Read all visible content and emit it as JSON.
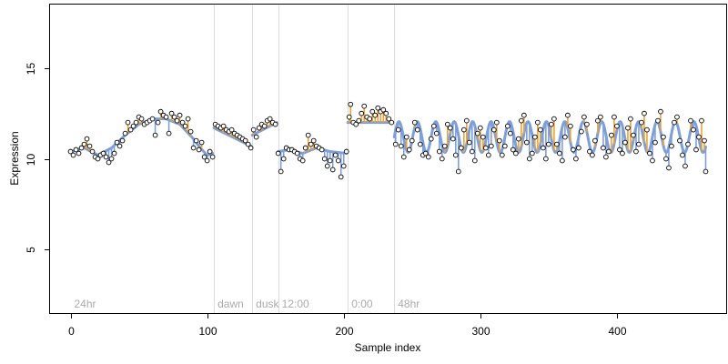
{
  "chart_data": {
    "type": "scatter",
    "title": "",
    "xlabel": "Sample index",
    "ylabel": "Expression",
    "xlim": [
      -15,
      480
    ],
    "ylim": [
      1.5,
      18.5
    ],
    "x_ticks": [
      0,
      100,
      200,
      300,
      400
    ],
    "y_ticks": [
      5,
      10,
      15
    ],
    "grid": false,
    "legend": "none",
    "colors": {
      "fit_line": "#7f9fd8",
      "residual_above": "#e8a33a",
      "residual_below": "#7f9fd8",
      "point_fill": "#ffffff",
      "point_stroke": "#000000",
      "divider": "#dddddd",
      "region_label": "#aaaaaa"
    },
    "regions": [
      {
        "label": "24hr",
        "start": 0
      },
      {
        "label": "dawn",
        "start": 105
      },
      {
        "label": "dusk",
        "start": 133
      },
      {
        "label": "12:00",
        "start": 152
      },
      {
        "label": "0:00",
        "start": 203
      },
      {
        "label": "48hr",
        "start": 237
      }
    ],
    "dividers": [
      105,
      133,
      152,
      203,
      237
    ],
    "segments": [
      {
        "name": "24hr",
        "x": [
          0,
          104
        ],
        "fit": [
          [
            0,
            10.4
          ],
          [
            10,
            10.6
          ],
          [
            20,
            10.2
          ],
          [
            30,
            10.6
          ],
          [
            40,
            11.3
          ],
          [
            50,
            11.9
          ],
          [
            60,
            12.2
          ],
          [
            70,
            12.2
          ],
          [
            80,
            11.9
          ],
          [
            90,
            11.1
          ],
          [
            95,
            10.6
          ],
          [
            100,
            10.2
          ],
          [
            104,
            10.3
          ]
        ]
      },
      {
        "name": "dawn",
        "x": [
          105,
          132
        ],
        "fit": [
          [
            105,
            11.7
          ],
          [
            132,
            10.7
          ]
        ]
      },
      {
        "name": "dusk",
        "x": [
          133,
          151
        ],
        "fit": [
          [
            133,
            11.3
          ],
          [
            151,
            12.0
          ]
        ]
      },
      {
        "name": "12:00",
        "x": [
          152,
          202
        ],
        "fit": [
          [
            152,
            10.4
          ],
          [
            160,
            10.5
          ],
          [
            170,
            10.3
          ],
          [
            180,
            10.6
          ],
          [
            190,
            10.4
          ],
          [
            202,
            10.3
          ]
        ]
      },
      {
        "name": "0:00",
        "x": [
          203,
          236
        ],
        "fit": [
          [
            203,
            12.0
          ],
          [
            236,
            12.0
          ]
        ]
      },
      {
        "name": "48hr",
        "x": [
          237,
          465
        ],
        "sine": {
          "mean": 11.2,
          "amp": 0.85,
          "period": 13.5,
          "phase": 237
        }
      }
    ],
    "points": [
      [
        0,
        10.4
      ],
      [
        2,
        10.2
      ],
      [
        4,
        10.5
      ],
      [
        6,
        10.3
      ],
      [
        8,
        10.6
      ],
      [
        10,
        10.8
      ],
      [
        12,
        11.1
      ],
      [
        14,
        10.7
      ],
      [
        16,
        10.4
      ],
      [
        18,
        10.1
      ],
      [
        20,
        10.0
      ],
      [
        22,
        10.2
      ],
      [
        24,
        10.3
      ],
      [
        26,
        10.1
      ],
      [
        28,
        9.8
      ],
      [
        30,
        10.0
      ],
      [
        32,
        10.3
      ],
      [
        34,
        10.9
      ],
      [
        36,
        10.7
      ],
      [
        38,
        11.0
      ],
      [
        40,
        11.4
      ],
      [
        42,
        12.0
      ],
      [
        44,
        11.6
      ],
      [
        46,
        11.8
      ],
      [
        48,
        12.0
      ],
      [
        50,
        12.3
      ],
      [
        52,
        12.2
      ],
      [
        54,
        11.9
      ],
      [
        56,
        12.0
      ],
      [
        58,
        12.1
      ],
      [
        60,
        12.2
      ],
      [
        62,
        11.3
      ],
      [
        64,
        12.0
      ],
      [
        66,
        12.6
      ],
      [
        68,
        12.4
      ],
      [
        70,
        12.3
      ],
      [
        72,
        11.4
      ],
      [
        74,
        12.5
      ],
      [
        76,
        12.3
      ],
      [
        78,
        12.1
      ],
      [
        80,
        12.4
      ],
      [
        82,
        12.0
      ],
      [
        84,
        11.8
      ],
      [
        86,
        12.2
      ],
      [
        88,
        11.5
      ],
      [
        90,
        10.6
      ],
      [
        92,
        11.0
      ],
      [
        94,
        10.5
      ],
      [
        96,
        10.9
      ],
      [
        98,
        10.1
      ],
      [
        100,
        9.9
      ],
      [
        102,
        10.4
      ],
      [
        104,
        10.1
      ],
      [
        106,
        11.9
      ],
      [
        108,
        11.8
      ],
      [
        110,
        11.7
      ],
      [
        112,
        11.8
      ],
      [
        114,
        11.6
      ],
      [
        116,
        11.5
      ],
      [
        118,
        11.6
      ],
      [
        120,
        11.4
      ],
      [
        122,
        11.3
      ],
      [
        124,
        11.2
      ],
      [
        126,
        11.1
      ],
      [
        128,
        11.0
      ],
      [
        130,
        10.8
      ],
      [
        132,
        10.6
      ],
      [
        134,
        11.6
      ],
      [
        136,
        11.2
      ],
      [
        138,
        11.7
      ],
      [
        140,
        11.9
      ],
      [
        142,
        11.8
      ],
      [
        144,
        12.1
      ],
      [
        146,
        12.2
      ],
      [
        148,
        12.0
      ],
      [
        150,
        11.9
      ],
      [
        152,
        10.3
      ],
      [
        154,
        9.3
      ],
      [
        156,
        10.0
      ],
      [
        158,
        10.6
      ],
      [
        160,
        10.5
      ],
      [
        162,
        10.5
      ],
      [
        164,
        10.4
      ],
      [
        166,
        10.3
      ],
      [
        168,
        10.0
      ],
      [
        170,
        9.9
      ],
      [
        172,
        10.6
      ],
      [
        174,
        11.3
      ],
      [
        176,
        10.8
      ],
      [
        178,
        11.0
      ],
      [
        180,
        10.7
      ],
      [
        182,
        10.6
      ],
      [
        184,
        10.5
      ],
      [
        186,
        10.0
      ],
      [
        188,
        9.6
      ],
      [
        190,
        9.9
      ],
      [
        192,
        9.4
      ],
      [
        194,
        10.2
      ],
      [
        196,
        9.9
      ],
      [
        198,
        9.0
      ],
      [
        200,
        9.6
      ],
      [
        202,
        10.4
      ],
      [
        204,
        12.3
      ],
      [
        205,
        13.0
      ],
      [
        207,
        12.0
      ],
      [
        209,
        11.9
      ],
      [
        211,
        12.1
      ],
      [
        213,
        12.5
      ],
      [
        215,
        12.9
      ],
      [
        217,
        12.3
      ],
      [
        219,
        12.2
      ],
      [
        221,
        12.6
      ],
      [
        223,
        12.4
      ],
      [
        225,
        12.8
      ],
      [
        227,
        12.6
      ],
      [
        229,
        12.7
      ],
      [
        231,
        12.5
      ],
      [
        233,
        12.2
      ],
      [
        235,
        12.0
      ],
      [
        238,
        10.8
      ],
      [
        240,
        11.6
      ],
      [
        242,
        10.7
      ],
      [
        244,
        10.1
      ],
      [
        246,
        11.2
      ],
      [
        248,
        10.5
      ],
      [
        250,
        11.0
      ],
      [
        252,
        12.0
      ],
      [
        254,
        11.6
      ],
      [
        256,
        10.8
      ],
      [
        258,
        10.2
      ],
      [
        260,
        10.3
      ],
      [
        262,
        10.1
      ],
      [
        264,
        11.1
      ],
      [
        266,
        11.8
      ],
      [
        268,
        11.4
      ],
      [
        270,
        10.4
      ],
      [
        272,
        10.0
      ],
      [
        274,
        10.7
      ],
      [
        276,
        11.9
      ],
      [
        278,
        11.7
      ],
      [
        280,
        11.1
      ],
      [
        282,
        10.2
      ],
      [
        284,
        9.3
      ],
      [
        286,
        10.6
      ],
      [
        288,
        11.6
      ],
      [
        290,
        12.1
      ],
      [
        292,
        10.9
      ],
      [
        294,
        10.4
      ],
      [
        296,
        9.9
      ],
      [
        298,
        11.4
      ],
      [
        300,
        11.7
      ],
      [
        302,
        11.2
      ],
      [
        304,
        10.6
      ],
      [
        306,
        10.2
      ],
      [
        308,
        10.7
      ],
      [
        310,
        11.6
      ],
      [
        312,
        12.0
      ],
      [
        314,
        11.0
      ],
      [
        316,
        10.2
      ],
      [
        318,
        10.7
      ],
      [
        320,
        11.8
      ],
      [
        322,
        11.4
      ],
      [
        324,
        10.5
      ],
      [
        326,
        10.3
      ],
      [
        328,
        11.1
      ],
      [
        330,
        12.1
      ],
      [
        332,
        12.4
      ],
      [
        334,
        10.9
      ],
      [
        336,
        10.0
      ],
      [
        338,
        10.3
      ],
      [
        340,
        11.2
      ],
      [
        342,
        12.0
      ],
      [
        344,
        11.6
      ],
      [
        346,
        10.6
      ],
      [
        348,
        10.0
      ],
      [
        350,
        10.8
      ],
      [
        352,
        11.9
      ],
      [
        354,
        12.2
      ],
      [
        356,
        10.8
      ],
      [
        358,
        10.3
      ],
      [
        360,
        9.9
      ],
      [
        362,
        11.2
      ],
      [
        364,
        12.4
      ],
      [
        366,
        11.8
      ],
      [
        368,
        10.5
      ],
      [
        370,
        10.0
      ],
      [
        372,
        10.6
      ],
      [
        374,
        11.5
      ],
      [
        376,
        12.3
      ],
      [
        378,
        11.9
      ],
      [
        380,
        10.4
      ],
      [
        382,
        10.2
      ],
      [
        384,
        11.0
      ],
      [
        386,
        12.1
      ],
      [
        388,
        12.3
      ],
      [
        390,
        10.6
      ],
      [
        392,
        10.1
      ],
      [
        394,
        10.4
      ],
      [
        396,
        11.3
      ],
      [
        398,
        12.3
      ],
      [
        400,
        11.8
      ],
      [
        402,
        10.5
      ],
      [
        404,
        10.3
      ],
      [
        406,
        10.9
      ],
      [
        408,
        11.7
      ],
      [
        410,
        12.2
      ],
      [
        412,
        11.3
      ],
      [
        414,
        10.4
      ],
      [
        416,
        10.8
      ],
      [
        418,
        12.0
      ],
      [
        420,
        12.5
      ],
      [
        422,
        11.6
      ],
      [
        424,
        10.3
      ],
      [
        426,
        9.9
      ],
      [
        428,
        10.9
      ],
      [
        430,
        12.1
      ],
      [
        432,
        12.6
      ],
      [
        434,
        11.2
      ],
      [
        436,
        10.0
      ],
      [
        438,
        9.5
      ],
      [
        440,
        10.7
      ],
      [
        442,
        12.0
      ],
      [
        444,
        12.3
      ],
      [
        446,
        11.0
      ],
      [
        448,
        10.2
      ],
      [
        450,
        9.6
      ],
      [
        452,
        10.8
      ],
      [
        454,
        12.1
      ],
      [
        456,
        11.6
      ],
      [
        458,
        10.5
      ],
      [
        460,
        11.2
      ],
      [
        462,
        12.1
      ],
      [
        464,
        11.0
      ],
      [
        465,
        9.3
      ]
    ]
  }
}
